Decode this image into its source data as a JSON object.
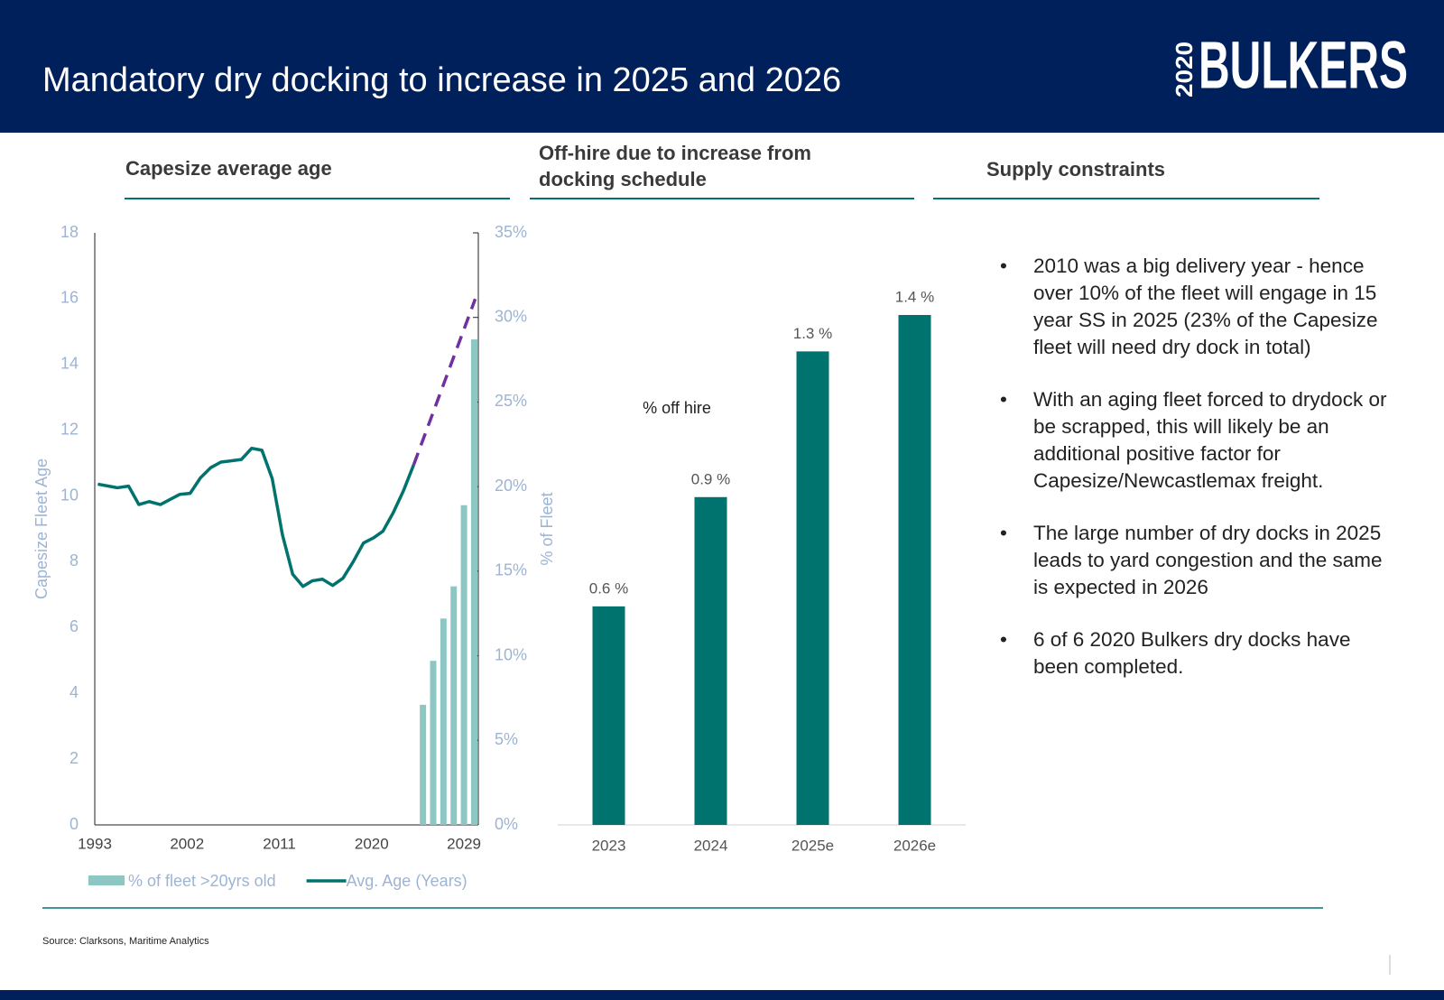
{
  "header": {
    "title": "Mandatory dry docking to increase in 2025 and 2026",
    "logo_number": "2020",
    "logo_name": "BULKERS"
  },
  "chart_data": [
    {
      "type": "line",
      "title": "Capesize average age",
      "ylabel": "Capesize Fleet Age",
      "y2label": "% of Fleet",
      "xlim": [
        1993,
        2030.4
      ],
      "xticks": [
        1993,
        2002,
        2011,
        2020,
        2029
      ],
      "ylim": [
        0,
        18
      ],
      "yticks": [
        0,
        2,
        4,
        6,
        8,
        10,
        12,
        14,
        16,
        18
      ],
      "y2lim": [
        0,
        35
      ],
      "y2ticks": [
        {
          "value": 0,
          "label": "0%"
        },
        {
          "value": 5,
          "label": "5%"
        },
        {
          "value": 10,
          "label": "10%"
        },
        {
          "value": 15,
          "label": "15%"
        },
        {
          "value": 20,
          "label": "20%"
        },
        {
          "value": 25,
          "label": "25%"
        },
        {
          "value": 30,
          "label": "30%"
        },
        {
          "value": 35,
          "label": "35%"
        }
      ],
      "legend": "bottom",
      "series": [
        {
          "name": "% of fleet >20yrs old",
          "type": "bar",
          "axis": "y2",
          "color": "#8cc7c3",
          "x": [
            2025,
            2026,
            2027,
            2028,
            2029,
            2030
          ],
          "values": [
            7.1,
            9.7,
            12.2,
            14.1,
            18.9,
            28.7
          ]
        },
        {
          "name": "Avg. Age (Years)",
          "type": "line",
          "color": "#00736e",
          "x": [
            1993.3,
            1995.2,
            1996.3,
            1997.3,
            1998.3,
            1999.4,
            2001.3,
            2002.3,
            2003.3,
            2004.3,
            2005.3,
            2007.3,
            2008.3,
            2009.3,
            2010.3,
            2011.3,
            2012.3,
            2013.3,
            2014.2,
            2015.2,
            2016.2,
            2017.2,
            2018.2,
            2019.2,
            2020.2,
            2021.1,
            2022.1,
            2023.1,
            2024.1
          ],
          "values": [
            10.36,
            10.25,
            10.3,
            9.74,
            9.83,
            9.74,
            10.05,
            10.08,
            10.55,
            10.86,
            11.03,
            11.11,
            11.45,
            11.39,
            10.53,
            8.82,
            7.62,
            7.25,
            7.42,
            7.47,
            7.28,
            7.5,
            8.0,
            8.57,
            8.73,
            8.93,
            9.49,
            10.16,
            10.95
          ]
        },
        {
          "type": "line",
          "dashed": true,
          "color": "#7030a0",
          "x": [
            2024.1,
            2030.1
          ],
          "values": [
            10.95,
            15.99
          ]
        }
      ]
    },
    {
      "type": "bar",
      "title": "Off-hire due to increase from docking schedule",
      "annotation": "% off hire",
      "color": "#00736e",
      "categories": [
        "2023",
        "2024",
        "2025e",
        "2026e"
      ],
      "values": [
        0.6,
        0.9,
        1.3,
        1.4
      ],
      "value_labels": [
        "0.6 %",
        "0.9 %",
        "1.3 %",
        "1.4 %"
      ]
    }
  ],
  "supply": {
    "title": "Supply constraints",
    "bullets": [
      "2010 was a big delivery year - hence over 10% of the fleet will engage in 15 year SS in 2025 (23% of the Capesize fleet will need dry dock in total)",
      "With an aging fleet forced to drydock or be scrapped, this will likely be an additional positive factor for Capesize/Newcastlemax freight.",
      "The large number of dry docks in 2025 leads to yard congestion and the same is expected in 2026",
      "6 of 6 2020 Bulkers dry docks have been completed."
    ]
  },
  "source": "Source: Clarksons, Maritime Analytics"
}
